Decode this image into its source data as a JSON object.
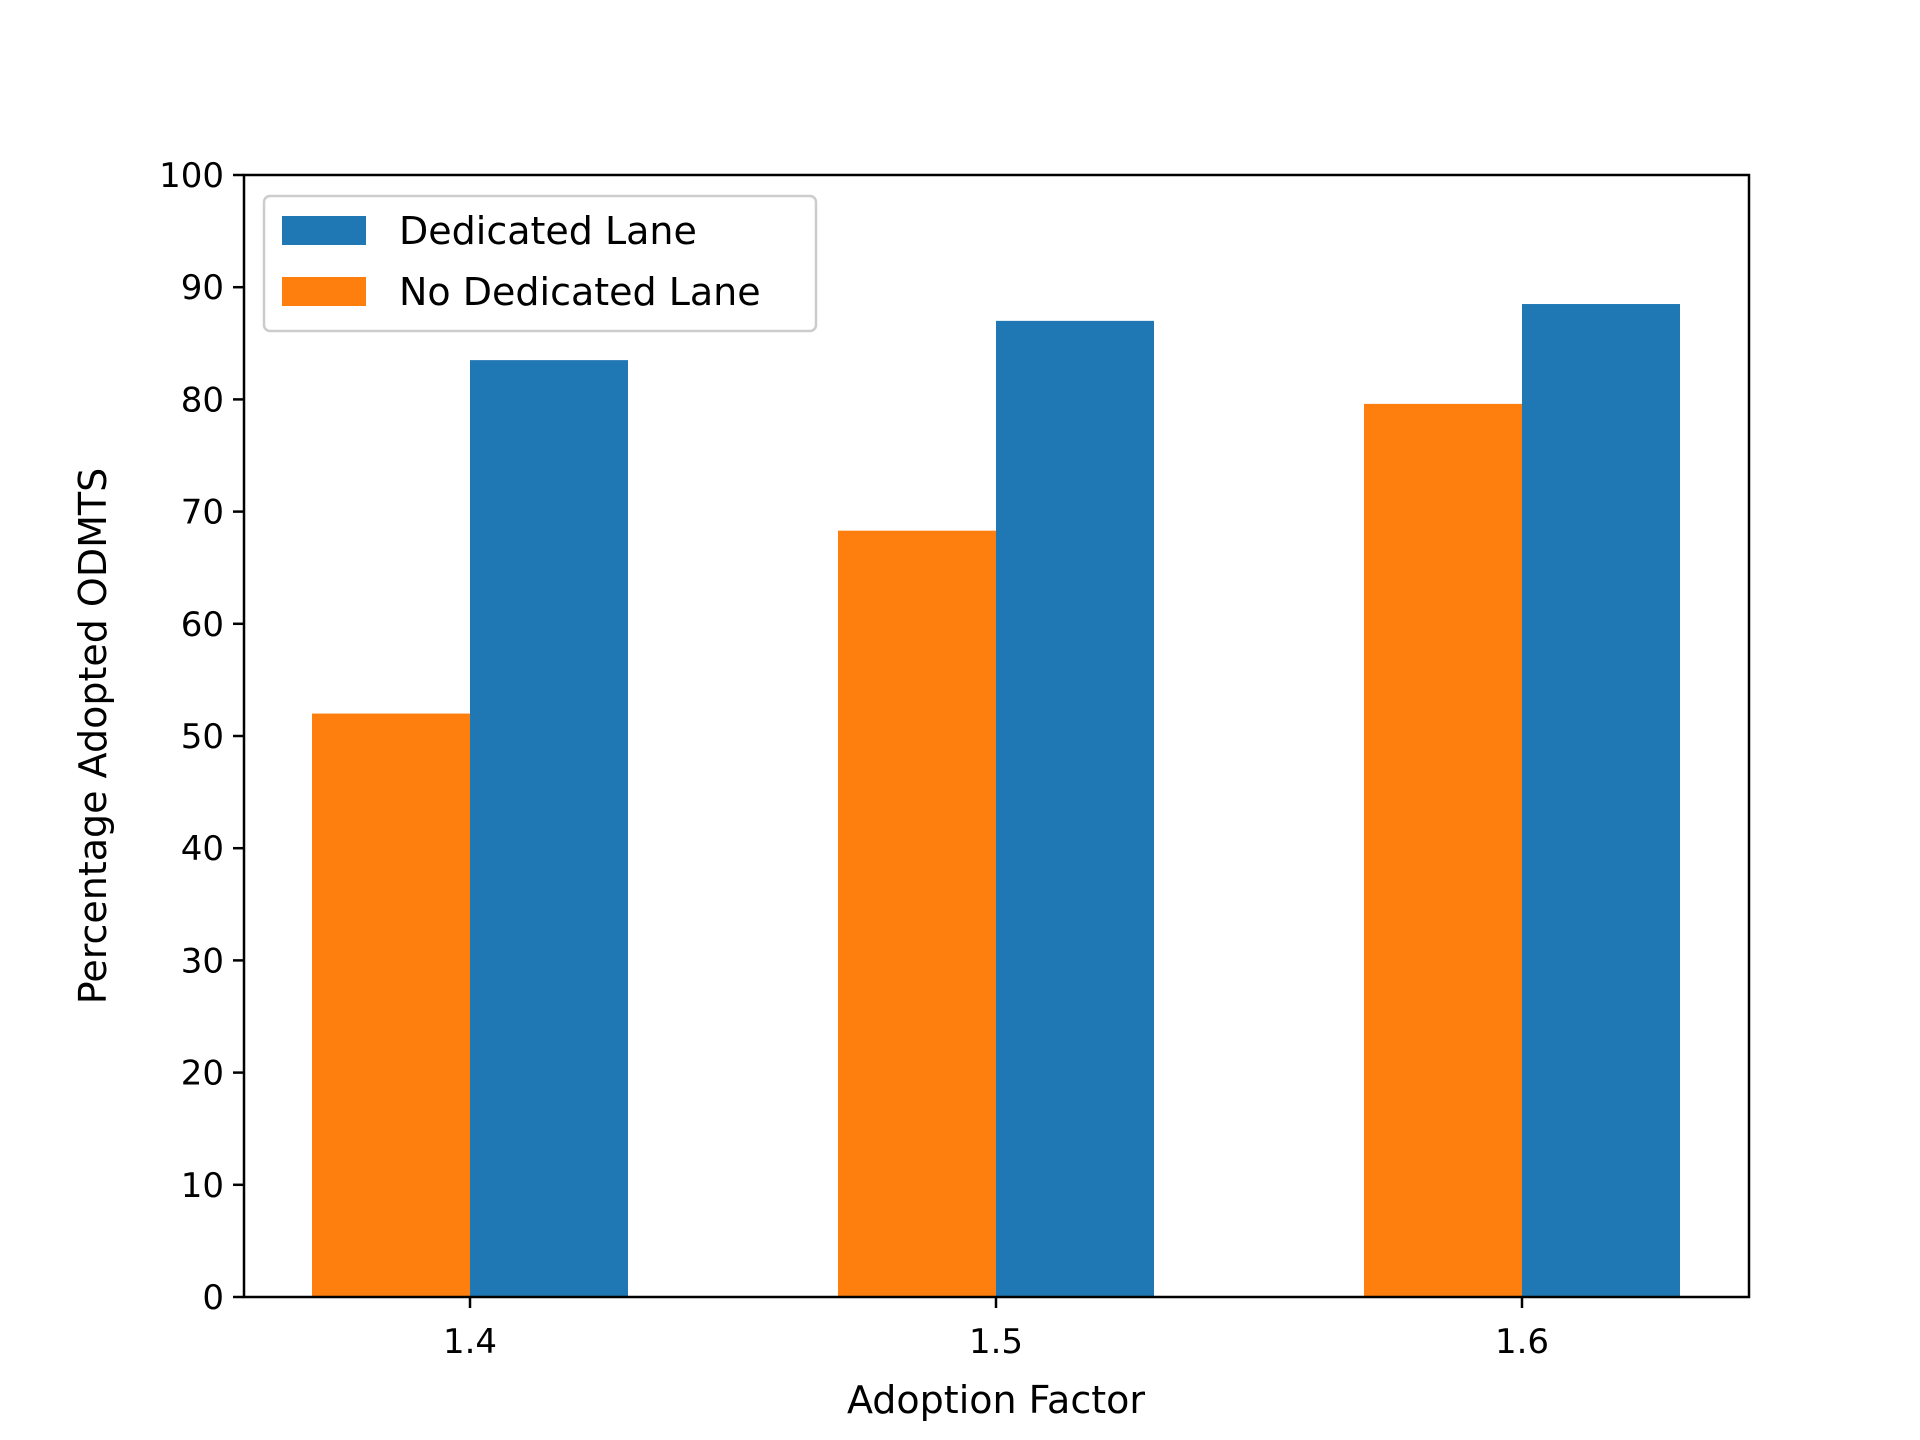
{
  "chart_data": {
    "type": "bar",
    "title": "",
    "xlabel": "Adoption Factor",
    "ylabel": "Percentage Adopted ODMTS",
    "categories": [
      "1.4",
      "1.5",
      "1.6"
    ],
    "series": [
      {
        "name": "Dedicated Lane",
        "color": "#1f77b4",
        "values": [
          83.5,
          87.0,
          88.5
        ]
      },
      {
        "name": "No Dedicated Lane",
        "color": "#ff7f0e",
        "values": [
          52.0,
          68.3,
          79.6
        ]
      }
    ],
    "ylim": [
      0,
      100
    ],
    "yticks": [
      0,
      10,
      20,
      30,
      40,
      50,
      60,
      70,
      80,
      90,
      100
    ],
    "grid": false,
    "legend_position": "top-left"
  }
}
